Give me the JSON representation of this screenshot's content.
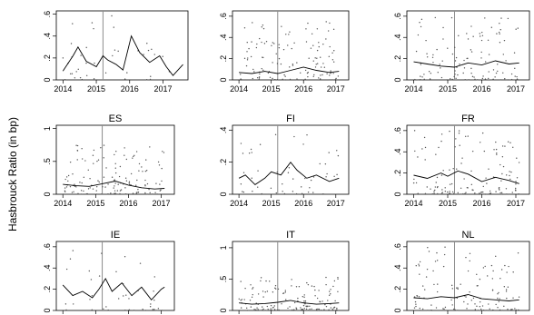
{
  "figure": {
    "y_axis_label": "Hasbrouck Ratio (in bp)",
    "event_year": 2015.2
  },
  "chart_data": [
    {
      "type": "scatter",
      "title": "",
      "xlabel": "",
      "ylabel": "Hasbrouck Ratio (in bp)",
      "xlim": [
        2013.8,
        2017.75
      ],
      "ylim": [
        0,
        0.63
      ],
      "xticks": [
        "2014",
        "2015",
        "2016",
        "2017"
      ],
      "yticks": [
        "0",
        ".2",
        ".4",
        ".6"
      ],
      "line": {
        "x": [
          2014.0,
          2014.3,
          2014.45,
          2014.7,
          2015.0,
          2015.2,
          2015.35,
          2015.6,
          2015.8,
          2016.05,
          2016.3,
          2016.6,
          2016.9,
          2017.1,
          2017.3,
          2017.6
        ],
        "y": [
          0.08,
          0.22,
          0.3,
          0.17,
          0.12,
          0.22,
          0.18,
          0.14,
          0.09,
          0.4,
          0.25,
          0.16,
          0.22,
          0.12,
          0.04,
          0.14
        ]
      },
      "scatter_range": [
        0.0,
        0.6
      ],
      "n_points": 40,
      "scatter_xlim": [
        2014.0,
        2017.3
      ]
    },
    {
      "type": "scatter",
      "title": "",
      "xlabel": "",
      "ylabel": "",
      "xlim": [
        2013.8,
        2017.4
      ],
      "ylim": [
        0,
        0.65
      ],
      "xticks": [
        "2014",
        "2015",
        "2016",
        "2017"
      ],
      "yticks": [
        "0",
        ".2",
        ".4",
        ".6"
      ],
      "line": {
        "x": [
          2014.0,
          2014.4,
          2014.8,
          2015.2,
          2015.6,
          2016.0,
          2016.4,
          2016.8,
          2017.1
        ],
        "y": [
          0.07,
          0.06,
          0.08,
          0.06,
          0.09,
          0.12,
          0.09,
          0.07,
          0.08
        ]
      },
      "scatter_range": [
        0.0,
        0.6
      ],
      "n_points": 130,
      "scatter_xlim": [
        2014.0,
        2017.1
      ]
    },
    {
      "type": "scatter",
      "title": "",
      "xlabel": "",
      "ylabel": "",
      "xlim": [
        2013.8,
        2017.4
      ],
      "ylim": [
        0,
        0.65
      ],
      "xticks": [
        "2014",
        "2015",
        "2016",
        "2017"
      ],
      "yticks": [
        "0",
        ".2",
        ".4",
        ".6"
      ],
      "line": {
        "x": [
          2014.0,
          2014.4,
          2014.8,
          2015.2,
          2015.6,
          2016.0,
          2016.4,
          2016.8,
          2017.1
        ],
        "y": [
          0.17,
          0.15,
          0.13,
          0.12,
          0.16,
          0.14,
          0.18,
          0.15,
          0.16
        ]
      },
      "scatter_range": [
        0.0,
        0.6
      ],
      "n_points": 120,
      "scatter_xlim": [
        2014.0,
        2017.1
      ]
    },
    {
      "type": "scatter",
      "title": "ES",
      "xlabel": "",
      "ylabel": "",
      "xlim": [
        2013.8,
        2017.4
      ],
      "ylim": [
        0,
        1.05
      ],
      "xticks": [
        "2014",
        "2015",
        "2016",
        "2017"
      ],
      "yticks": [
        "0",
        ".5",
        "1"
      ],
      "line": {
        "x": [
          2014.0,
          2014.4,
          2014.8,
          2015.2,
          2015.6,
          2016.0,
          2016.4,
          2016.8,
          2017.1
        ],
        "y": [
          0.15,
          0.13,
          0.12,
          0.16,
          0.2,
          0.14,
          0.1,
          0.08,
          0.09
        ]
      },
      "scatter_range": [
        0.0,
        0.75
      ],
      "n_points": 150,
      "scatter_xlim": [
        2014.0,
        2017.1
      ]
    },
    {
      "type": "scatter",
      "title": "FI",
      "xlabel": "",
      "ylabel": "",
      "xlim": [
        2013.8,
        2017.4
      ],
      "ylim": [
        0,
        0.43
      ],
      "xticks": [
        "2014",
        "2015",
        "2016",
        "2017"
      ],
      "yticks": [
        "0",
        ".2",
        ".4"
      ],
      "line": {
        "x": [
          2014.0,
          2014.2,
          2014.5,
          2014.8,
          2015.0,
          2015.3,
          2015.6,
          2015.8,
          2016.1,
          2016.4,
          2016.8,
          2017.1
        ],
        "y": [
          0.1,
          0.12,
          0.06,
          0.1,
          0.14,
          0.12,
          0.2,
          0.15,
          0.1,
          0.12,
          0.08,
          0.1
        ]
      },
      "scatter_range": [
        0.0,
        0.4
      ],
      "n_points": 50,
      "scatter_xlim": [
        2014.0,
        2017.1
      ]
    },
    {
      "type": "scatter",
      "title": "FR",
      "xlabel": "",
      "ylabel": "",
      "xlim": [
        2013.8,
        2017.4
      ],
      "ylim": [
        0,
        0.65
      ],
      "xticks": [
        "2014",
        "2015",
        "2016",
        "2017"
      ],
      "yticks": [
        "0",
        ".2",
        ".4",
        ".6"
      ],
      "line": {
        "x": [
          2014.0,
          2014.4,
          2014.8,
          2015.0,
          2015.3,
          2015.6,
          2016.0,
          2016.4,
          2016.8,
          2017.1
        ],
        "y": [
          0.18,
          0.15,
          0.2,
          0.17,
          0.22,
          0.19,
          0.12,
          0.16,
          0.13,
          0.1
        ]
      },
      "scatter_range": [
        0.0,
        0.6
      ],
      "n_points": 140,
      "scatter_xlim": [
        2014.0,
        2017.1
      ]
    },
    {
      "type": "scatter",
      "title": "IE",
      "xlabel": "",
      "ylabel": "",
      "xlim": [
        2013.8,
        2017.4
      ],
      "ylim": [
        0,
        0.65
      ],
      "xticks": [],
      "yticks": [
        "0",
        ".2",
        ".4",
        ".6"
      ],
      "line": {
        "x": [
          2014.0,
          2014.3,
          2014.6,
          2014.9,
          2015.1,
          2015.3,
          2015.5,
          2015.8,
          2016.1,
          2016.4,
          2016.7,
          2017.0,
          2017.1
        ],
        "y": [
          0.24,
          0.14,
          0.18,
          0.12,
          0.2,
          0.3,
          0.18,
          0.26,
          0.14,
          0.22,
          0.1,
          0.2,
          0.22
        ]
      },
      "scatter_range": [
        0.0,
        0.6
      ],
      "n_points": 40,
      "scatter_xlim": [
        2014.0,
        2017.1
      ]
    },
    {
      "type": "scatter",
      "title": "IT",
      "xlabel": "",
      "ylabel": "",
      "xlim": [
        2013.8,
        2017.4
      ],
      "ylim": [
        0,
        1.1
      ],
      "xticks": [],
      "yticks": [
        "0",
        ".5",
        "1"
      ],
      "line": {
        "x": [
          2014.0,
          2014.4,
          2014.8,
          2015.2,
          2015.6,
          2016.0,
          2016.4,
          2016.8,
          2017.1
        ],
        "y": [
          0.12,
          0.1,
          0.11,
          0.13,
          0.16,
          0.12,
          0.1,
          0.11,
          0.12
        ]
      },
      "scatter_range": [
        0.0,
        0.55
      ],
      "n_points": 150,
      "scatter_xlim": [
        2014.0,
        2017.1
      ]
    },
    {
      "type": "scatter",
      "title": "NL",
      "xlabel": "",
      "ylabel": "",
      "xlim": [
        2013.8,
        2017.4
      ],
      "ylim": [
        0,
        0.65
      ],
      "xticks": [],
      "yticks": [
        "0",
        ".2",
        ".4",
        ".6"
      ],
      "line": {
        "x": [
          2014.0,
          2014.4,
          2014.8,
          2015.2,
          2015.6,
          2016.0,
          2016.4,
          2016.8,
          2017.1
        ],
        "y": [
          0.12,
          0.11,
          0.13,
          0.12,
          0.15,
          0.11,
          0.1,
          0.09,
          0.1
        ]
      },
      "scatter_range": [
        0.0,
        0.6
      ],
      "n_points": 130,
      "scatter_xlim": [
        2014.0,
        2017.1
      ]
    }
  ]
}
